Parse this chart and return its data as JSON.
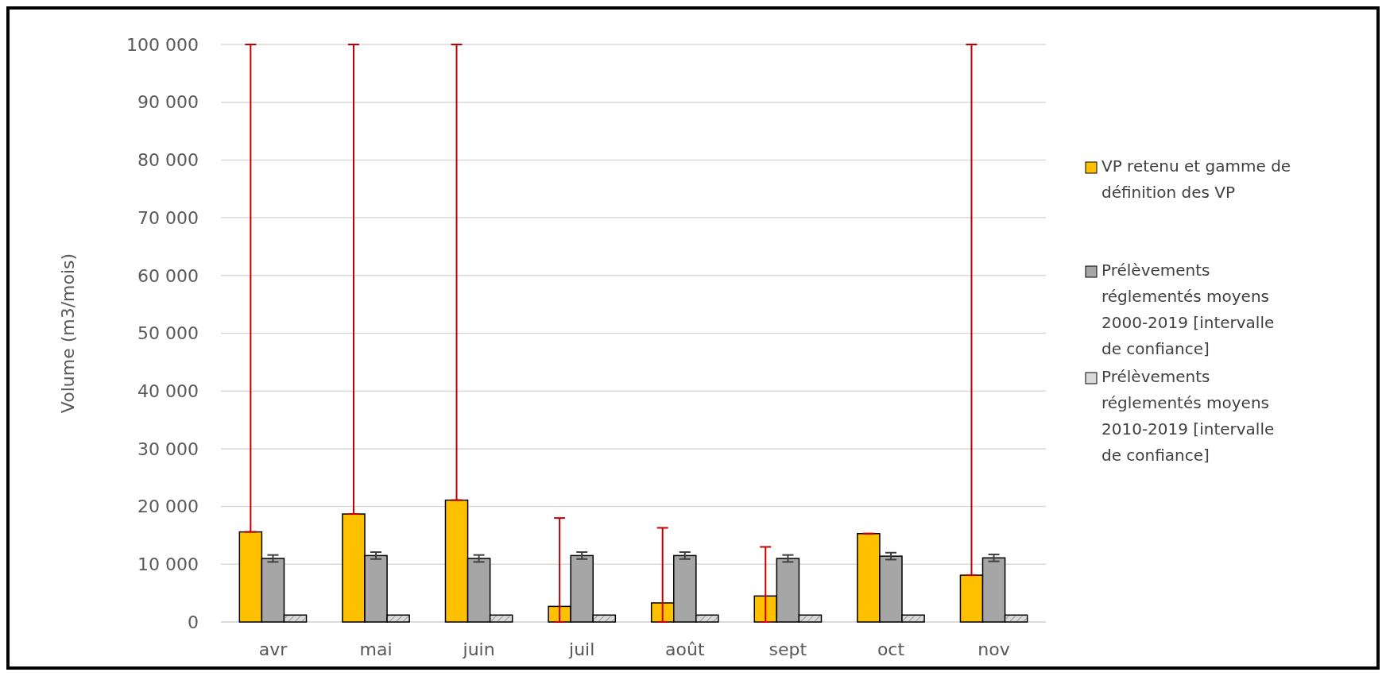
{
  "chart_data": {
    "type": "bar",
    "ylabel": "Volume (m3/mois)",
    "categories": [
      "avr",
      "mai",
      "juin",
      "juil",
      "août",
      "sept",
      "oct",
      "nov"
    ],
    "series": [
      {
        "name": "VP retenu et gamme de définition des VP",
        "color": "#ffc000",
        "values": [
          15600,
          18700,
          21100,
          2700,
          3300,
          4500,
          15300,
          8100
        ],
        "errors": [
          [
            15600,
            100000
          ],
          [
            18700,
            100000
          ],
          [
            21100,
            100000
          ],
          [
            0,
            18000
          ],
          [
            0,
            16300
          ],
          [
            0,
            13000
          ],
          [
            15300,
            15300
          ],
          [
            8100,
            100000
          ]
        ]
      },
      {
        "name": "Prélèvements réglementés moyens 2000-2019 [intervalle de confiance]",
        "color": "#a6a6a6",
        "values": [
          11000,
          11500,
          11000,
          11500,
          11500,
          11000,
          11400,
          11100
        ],
        "errors": [
          600,
          600,
          600,
          600,
          600,
          600,
          600,
          600
        ]
      },
      {
        "name": "Prélèvements réglementés moyens 2010-2019 [intervalle de confiance]",
        "color": "#d9d9d9",
        "values": [
          1200,
          1200,
          1200,
          1200,
          1200,
          1200,
          1200,
          1200
        ]
      }
    ],
    "ylim": [
      0,
      100000
    ],
    "yticks": [
      {
        "value": 0,
        "label": "0"
      },
      {
        "value": 10000,
        "label": "10 000"
      },
      {
        "value": 20000,
        "label": "20 000"
      },
      {
        "value": 30000,
        "label": "30 000"
      },
      {
        "value": 40000,
        "label": "40 000"
      },
      {
        "value": 50000,
        "label": "50 000"
      },
      {
        "value": 60000,
        "label": "60 000"
      },
      {
        "value": 70000,
        "label": "70 000"
      },
      {
        "value": 80000,
        "label": "80 000"
      },
      {
        "value": 90000,
        "label": "90 000"
      },
      {
        "value": 100000,
        "label": "100 000"
      }
    ],
    "grid": "y",
    "legend": "right"
  }
}
